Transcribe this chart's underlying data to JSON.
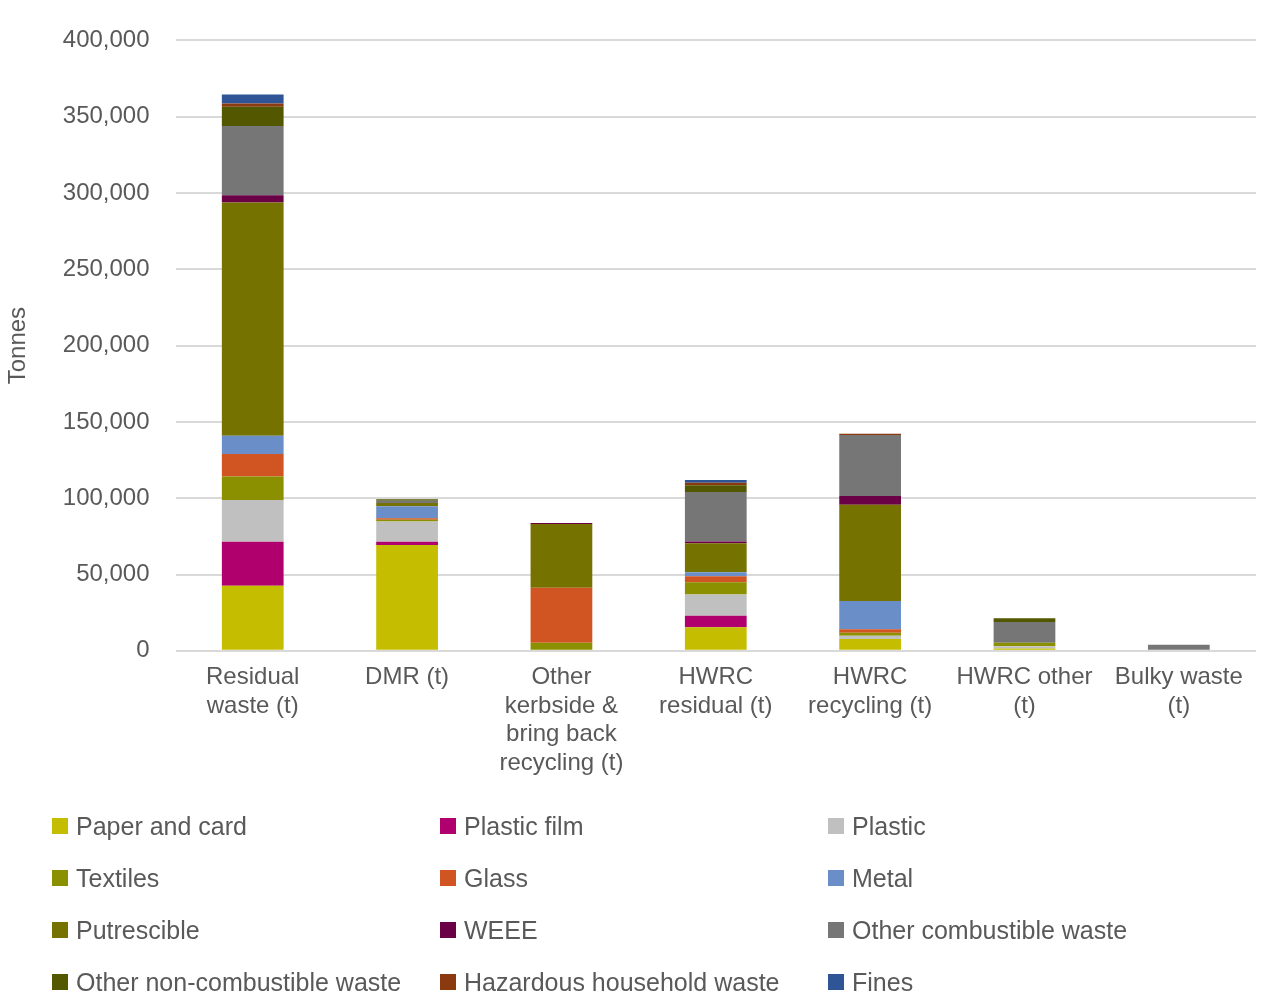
{
  "chart_data": {
    "type": "bar",
    "stacked": true,
    "ylabel": "Tonnes",
    "categories": [
      "Residual waste (t)",
      "DMR (t)",
      "Other kerbside & bring back recycling (t)",
      "HWRC residual (t)",
      "HWRC recycling (t)",
      "HWRC other (t)",
      "Bulky waste (t)"
    ],
    "ylim": [
      0,
      400000
    ],
    "yticks": [
      {
        "value": 0,
        "label": "0"
      },
      {
        "value": 50000,
        "label": "50,000"
      },
      {
        "value": 100000,
        "label": "100,000"
      },
      {
        "value": 150000,
        "label": "150,000"
      },
      {
        "value": 200000,
        "label": "200,000"
      },
      {
        "value": 250000,
        "label": "250,000"
      },
      {
        "value": 300000,
        "label": "300,000"
      },
      {
        "value": 350000,
        "label": "350,000"
      },
      {
        "value": 400000,
        "label": "400,000"
      }
    ],
    "grid": "y",
    "legend": "bottom",
    "series": [
      {
        "name": "Paper and card",
        "color": "#c4bd00",
        "values": [
          42700,
          69400,
          0,
          15400,
          7800,
          1500,
          0
        ]
      },
      {
        "name": "Plastic film",
        "color": "#b0006e",
        "values": [
          28800,
          2000,
          0,
          7500,
          0,
          0,
          null
        ]
      },
      {
        "name": "Plastic",
        "color": "#c0c0c0",
        "values": [
          27300,
          13400,
          0,
          14000,
          2000,
          1500,
          0
        ]
      },
      {
        "name": "Textiles",
        "color": "#8a9000",
        "values": [
          15400,
          1000,
          5300,
          8000,
          2000,
          2200,
          0
        ]
      },
      {
        "name": "Glass",
        "color": "#d05522",
        "values": [
          14700,
          1000,
          36000,
          4000,
          2400,
          0,
          0
        ]
      },
      {
        "name": "Metal",
        "color": "#6a8fc8",
        "values": [
          12000,
          8000,
          0,
          2600,
          18500,
          0,
          0
        ]
      },
      {
        "name": "Putrescible",
        "color": "#767200",
        "values": [
          152900,
          2000,
          41800,
          19000,
          63000,
          0,
          0
        ]
      },
      {
        "name": "WEEE",
        "color": "#6a0046",
        "values": [
          4700,
          null,
          700,
          1100,
          5800,
          0,
          0
        ]
      },
      {
        "name": "Other combustible waste",
        "color": "#767676",
        "values": [
          45400,
          1500,
          0,
          32500,
          39900,
          13700,
          4000
        ]
      },
      {
        "name": "Other non-combustible waste",
        "color": "#535800",
        "values": [
          12700,
          1000,
          0,
          4400,
          0,
          2500,
          0
        ]
      },
      {
        "name": "Hazardous household waste",
        "color": "#8b3a10",
        "values": [
          2000,
          0,
          0,
          1600,
          800,
          0,
          0
        ]
      },
      {
        "name": "Fines",
        "color": "#2f5597",
        "values": [
          6000,
          0,
          0,
          1800,
          0,
          0,
          0
        ]
      }
    ]
  }
}
